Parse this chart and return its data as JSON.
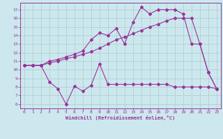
{
  "xlabel": "Windchill (Refroidissement éolien,°C)",
  "bg_color": "#cce8ee",
  "grid_color": "#aacccc",
  "line_color": "#993399",
  "xlim": [
    -0.5,
    23.5
  ],
  "ylim": [
    5.5,
    17.8
  ],
  "xticks": [
    0,
    1,
    2,
    3,
    4,
    5,
    6,
    7,
    8,
    9,
    10,
    11,
    12,
    13,
    14,
    15,
    16,
    17,
    18,
    19,
    20,
    21,
    22,
    23
  ],
  "yticks": [
    6,
    7,
    8,
    9,
    10,
    11,
    12,
    13,
    14,
    15,
    16,
    17
  ],
  "series1_x": [
    0,
    1,
    2,
    3,
    4,
    5,
    6,
    7,
    8,
    9,
    10,
    11,
    12,
    13,
    14,
    15,
    16,
    17,
    18,
    19,
    20,
    21,
    22,
    23
  ],
  "series1_y": [
    10.5,
    10.5,
    10.5,
    10.8,
    11.0,
    11.3,
    11.5,
    11.8,
    12.1,
    12.5,
    13.0,
    13.5,
    13.8,
    14.2,
    14.6,
    15.0,
    15.3,
    15.7,
    16.0,
    16.0,
    16.0,
    13.0,
    9.7,
    7.8
  ],
  "series2_x": [
    0,
    1,
    2,
    3,
    4,
    5,
    6,
    7,
    8,
    9,
    10,
    11,
    12,
    13,
    14,
    15,
    16,
    17,
    18,
    19,
    20,
    21,
    22,
    23
  ],
  "series2_y": [
    10.5,
    10.5,
    10.5,
    11.0,
    11.2,
    11.5,
    11.8,
    12.2,
    13.5,
    14.3,
    14.0,
    14.8,
    13.0,
    15.5,
    17.3,
    16.5,
    17.0,
    17.0,
    17.0,
    16.5,
    13.0,
    13.0,
    9.7,
    7.8
  ],
  "series3_x": [
    0,
    1,
    2,
    3,
    4,
    5,
    6,
    7,
    8,
    9,
    10,
    11,
    12,
    13,
    14,
    15,
    16,
    17,
    18,
    19,
    20,
    21,
    22,
    23
  ],
  "series3_y": [
    10.5,
    10.5,
    10.5,
    8.6,
    7.8,
    6.0,
    8.1,
    7.5,
    8.2,
    10.7,
    8.3,
    8.3,
    8.3,
    8.3,
    8.3,
    8.3,
    8.3,
    8.3,
    8.0,
    8.0,
    8.0,
    8.0,
    8.0,
    7.8
  ]
}
